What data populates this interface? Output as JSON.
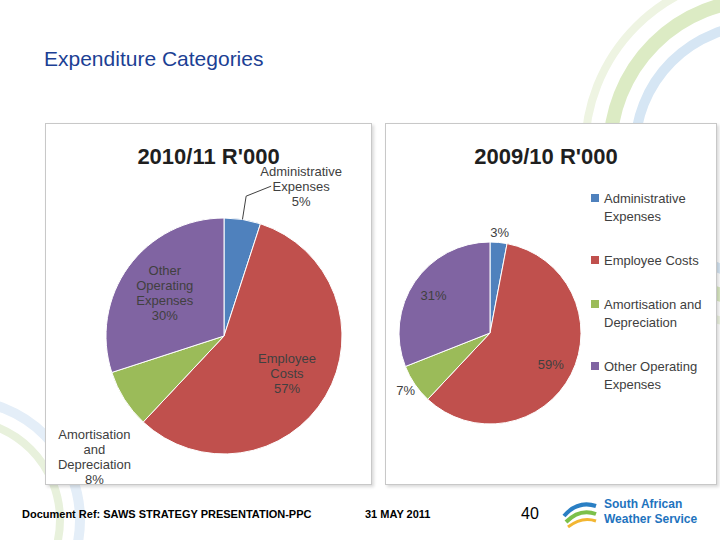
{
  "slide": {
    "title": "Expenditure Categories",
    "footer": {
      "reference": "Document Ref: SAWS STRATEGY PRESENTATION-PPC",
      "date": "31 MAY 2011",
      "page": "40",
      "logo": [
        "South African",
        "Weather Service"
      ]
    }
  },
  "chart_data": [
    {
      "type": "pie",
      "title": "2010/11 R'000",
      "categories": [
        "Administrative Expenses",
        "Employee Costs",
        "Amortisation and Depreciation",
        "Other Operating Expenses"
      ],
      "values": [
        5,
        57,
        8,
        30
      ],
      "value_labels": [
        "5%",
        "57%",
        "8%",
        "30%"
      ],
      "colors": [
        "#4f81bd",
        "#c0504d",
        "#9bbb59",
        "#8064a2"
      ],
      "data_labels": true
    },
    {
      "type": "pie",
      "title": "2009/10 R'000",
      "categories": [
        "Administrative Expenses",
        "Employee Costs",
        "Amortisation and Depreciation",
        "Other Operating Expenses"
      ],
      "values": [
        3,
        59,
        7,
        31
      ],
      "value_labels": [
        "3%",
        "59%",
        "7%",
        "31%"
      ],
      "colors": [
        "#4f81bd",
        "#c0504d",
        "#9bbb59",
        "#8064a2"
      ],
      "data_labels": true,
      "legend": "right"
    }
  ]
}
